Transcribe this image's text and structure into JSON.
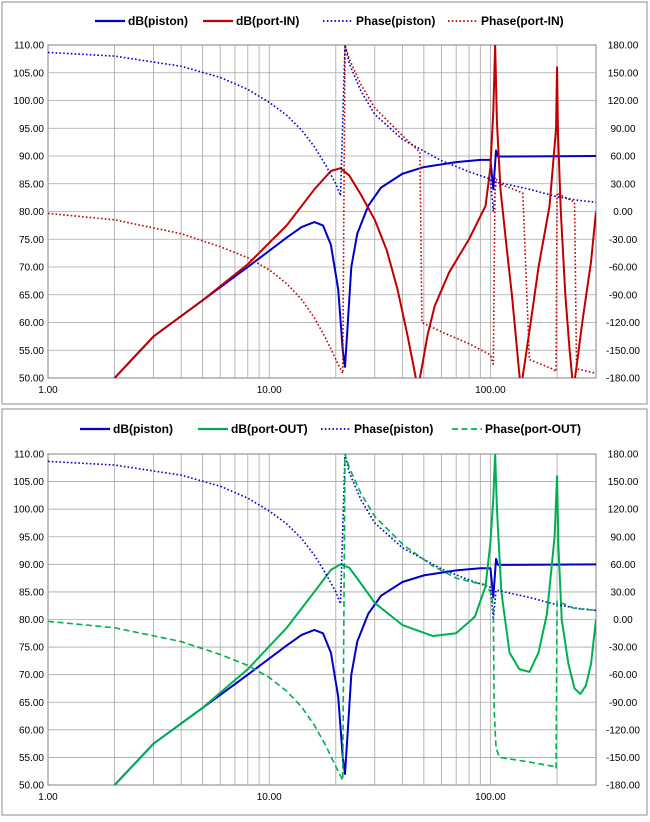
{
  "chart_data": [
    {
      "type": "line",
      "x_scale": "log",
      "xlim": [
        1,
        300
      ],
      "ylim": [
        50,
        110
      ],
      "y2lim": [
        -180,
        180
      ],
      "grid": true,
      "legend_position": "top",
      "x_tick_labels": [
        "1.00",
        "10.00",
        "100.00"
      ],
      "y_tick_labels": [
        "50.00",
        "55.00",
        "60.00",
        "65.00",
        "70.00",
        "75.00",
        "80.00",
        "85.00",
        "90.00",
        "95.00",
        "100.00",
        "105.00",
        "110.00"
      ],
      "y2_tick_labels": [
        "-180.00",
        "-150.00",
        "-120.00",
        "-90.00",
        "-60.00",
        "-30.00",
        "0.00",
        "30.00",
        "60.00",
        "90.00",
        "120.00",
        "150.00",
        "180.00"
      ],
      "series": [
        {
          "name": "dB(piston)",
          "axis": "left",
          "color": "#0000cc",
          "style": "solid",
          "points": [
            [
              2,
              50
            ],
            [
              3,
              57.5
            ],
            [
              5,
              64
            ],
            [
              8,
              70
            ],
            [
              12,
              75.3
            ],
            [
              14,
              77.2
            ],
            [
              16,
              78.1
            ],
            [
              17.5,
              77.5
            ],
            [
              19,
              74
            ],
            [
              20.5,
              66
            ],
            [
              21.5,
              55
            ],
            [
              22,
              52
            ],
            [
              22.5,
              58
            ],
            [
              23.5,
              70
            ],
            [
              25,
              76
            ],
            [
              28,
              81
            ],
            [
              32,
              84.3
            ],
            [
              40,
              86.8
            ],
            [
              50,
              88
            ],
            [
              70,
              88.9
            ],
            [
              90,
              89.3
            ],
            [
              100,
              89.3
            ],
            [
              103,
              84
            ],
            [
              106,
              91
            ],
            [
              108,
              89.9
            ],
            [
              300,
              90
            ]
          ]
        },
        {
          "name": "dB(port-IN)",
          "axis": "left",
          "color": "#c00000",
          "style": "solid",
          "points": [
            [
              2,
              50
            ],
            [
              3,
              57.5
            ],
            [
              5,
              64
            ],
            [
              8,
              70.5
            ],
            [
              12,
              77.5
            ],
            [
              16,
              84
            ],
            [
              19,
              87.3
            ],
            [
              21,
              87.8
            ],
            [
              23,
              86.5
            ],
            [
              26,
              83
            ],
            [
              30,
              78.5
            ],
            [
              34,
              73
            ],
            [
              38,
              66
            ],
            [
              42,
              58
            ],
            [
              45,
              52
            ],
            [
              47,
              48
            ],
            [
              49,
              52
            ],
            [
              52,
              57.8
            ],
            [
              56,
              63
            ],
            [
              65,
              69
            ],
            [
              80,
              75
            ],
            [
              95,
              81
            ],
            [
              100,
              88
            ],
            [
              103,
              98
            ],
            [
              105,
              110
            ],
            [
              107,
              96
            ],
            [
              111,
              84
            ],
            [
              118,
              74
            ],
            [
              125,
              65
            ],
            [
              132,
              55
            ],
            [
              137,
              48
            ],
            [
              142,
              52
            ],
            [
              152,
              60
            ],
            [
              165,
              70
            ],
            [
              185,
              81
            ],
            [
              198,
              95
            ],
            [
              200,
              106
            ],
            [
              202,
              94
            ],
            [
              208,
              80
            ],
            [
              218,
              65
            ],
            [
              228,
              55
            ],
            [
              237,
              48
            ],
            [
              245,
              52
            ],
            [
              260,
              60
            ],
            [
              285,
              71
            ],
            [
              300,
              80
            ]
          ]
        },
        {
          "name": "Phase(piston)",
          "axis": "right",
          "color": "#0000cc",
          "style": "dotted",
          "points": [
            [
              1,
              172
            ],
            [
              2,
              168
            ],
            [
              4,
              157
            ],
            [
              6,
              145
            ],
            [
              8,
              132
            ],
            [
              10,
              118
            ],
            [
              12,
              104
            ],
            [
              14,
              88
            ],
            [
              16,
              70
            ],
            [
              18,
              50
            ],
            [
              20,
              30
            ],
            [
              21,
              17
            ],
            [
              22,
              180
            ],
            [
              23,
              160
            ],
            [
              26,
              130
            ],
            [
              30,
              105
            ],
            [
              40,
              78
            ],
            [
              60,
              55
            ],
            [
              80,
              43
            ],
            [
              100,
              35
            ],
            [
              103,
              0
            ],
            [
              106,
              32
            ],
            [
              150,
              24
            ],
            [
              200,
              16
            ],
            [
              250,
              12
            ],
            [
              300,
              10
            ]
          ]
        },
        {
          "name": "Phase(port-IN)",
          "axis": "right",
          "color": "#c00000",
          "style": "dotted",
          "points": [
            [
              1,
              -2
            ],
            [
              2,
              -9
            ],
            [
              4,
              -24
            ],
            [
              6,
              -38
            ],
            [
              8,
              -50
            ],
            [
              10,
              -63
            ],
            [
              12,
              -78
            ],
            [
              14,
              -95
            ],
            [
              16,
              -115
            ],
            [
              18,
              -137
            ],
            [
              20,
              -160
            ],
            [
              21.5,
              -175
            ],
            [
              22,
              180
            ],
            [
              23,
              165
            ],
            [
              26,
              137
            ],
            [
              30,
              112
            ],
            [
              40,
              82
            ],
            [
              48,
              64
            ],
            [
              49,
              -120
            ],
            [
              60,
              -130
            ],
            [
              80,
              -143
            ],
            [
              100,
              -155
            ],
            [
              103,
              -165
            ],
            [
              105,
              37
            ],
            [
              110,
              30
            ],
            [
              140,
              20
            ],
            [
              150,
              -160
            ],
            [
              190,
              -170
            ],
            [
              198,
              -173
            ],
            [
              200,
              20
            ],
            [
              240,
              10
            ],
            [
              245,
              -170
            ],
            [
              300,
              -175
            ]
          ]
        }
      ]
    },
    {
      "type": "line",
      "x_scale": "log",
      "xlim": [
        1,
        300
      ],
      "ylim": [
        50,
        110
      ],
      "y2lim": [
        -180,
        180
      ],
      "grid": true,
      "legend_position": "top",
      "x_tick_labels": [
        "1.00",
        "10.00",
        "100.00"
      ],
      "y_tick_labels": [
        "50.00",
        "55.00",
        "60.00",
        "65.00",
        "70.00",
        "75.00",
        "80.00",
        "85.00",
        "90.00",
        "95.00",
        "100.00",
        "105.00",
        "110.00"
      ],
      "y2_tick_labels": [
        "-180.00",
        "-150.00",
        "-120.00",
        "-90.00",
        "-60.00",
        "-30.00",
        "0.00",
        "30.00",
        "60.00",
        "90.00",
        "120.00",
        "150.00",
        "180.00"
      ],
      "series": [
        {
          "name": "dB(piston)",
          "axis": "left",
          "color": "#0000cc",
          "style": "solid",
          "points": [
            [
              2,
              50
            ],
            [
              3,
              57.5
            ],
            [
              5,
              64
            ],
            [
              8,
              70
            ],
            [
              12,
              75.3
            ],
            [
              14,
              77.2
            ],
            [
              16,
              78.1
            ],
            [
              17.5,
              77.5
            ],
            [
              19,
              74
            ],
            [
              20.5,
              66
            ],
            [
              21.5,
              55
            ],
            [
              22,
              52
            ],
            [
              22.5,
              58
            ],
            [
              23.5,
              70
            ],
            [
              25,
              76
            ],
            [
              28,
              81
            ],
            [
              32,
              84.3
            ],
            [
              40,
              86.8
            ],
            [
              50,
              88
            ],
            [
              70,
              88.9
            ],
            [
              90,
              89.3
            ],
            [
              100,
              89.3
            ],
            [
              103,
              84
            ],
            [
              106,
              91
            ],
            [
              108,
              89.9
            ],
            [
              300,
              90
            ]
          ]
        },
        {
          "name": "dB(port-OUT)",
          "axis": "left",
          "color": "#00b050",
          "style": "solid",
          "points": [
            [
              2,
              50
            ],
            [
              3,
              57.5
            ],
            [
              5,
              64
            ],
            [
              8,
              71
            ],
            [
              12,
              78.5
            ],
            [
              16,
              85
            ],
            [
              19,
              89
            ],
            [
              21,
              90
            ],
            [
              23,
              89.4
            ],
            [
              26,
              86.5
            ],
            [
              30,
              83
            ],
            [
              40,
              79
            ],
            [
              55,
              77
            ],
            [
              70,
              77.5
            ],
            [
              85,
              80.5
            ],
            [
              95,
              86
            ],
            [
              100,
              94
            ],
            [
              103,
              102
            ],
            [
              105,
              110
            ],
            [
              107,
              100
            ],
            [
              112,
              85
            ],
            [
              122,
              74
            ],
            [
              135,
              71
            ],
            [
              150,
              70.5
            ],
            [
              165,
              74
            ],
            [
              180,
              81
            ],
            [
              195,
              95
            ],
            [
              200,
              106
            ],
            [
              203,
              93
            ],
            [
              210,
              80
            ],
            [
              225,
              72
            ],
            [
              240,
              67.5
            ],
            [
              255,
              66.5
            ],
            [
              270,
              68
            ],
            [
              285,
              72
            ],
            [
              300,
              80
            ]
          ]
        },
        {
          "name": "Phase(piston)",
          "axis": "right",
          "color": "#0000cc",
          "style": "dotted",
          "points": [
            [
              1,
              172
            ],
            [
              2,
              168
            ],
            [
              4,
              157
            ],
            [
              6,
              145
            ],
            [
              8,
              132
            ],
            [
              10,
              118
            ],
            [
              12,
              104
            ],
            [
              14,
              88
            ],
            [
              16,
              70
            ],
            [
              18,
              50
            ],
            [
              20,
              30
            ],
            [
              21,
              17
            ],
            [
              22,
              180
            ],
            [
              23,
              160
            ],
            [
              26,
              130
            ],
            [
              30,
              105
            ],
            [
              40,
              78
            ],
            [
              60,
              55
            ],
            [
              80,
              43
            ],
            [
              100,
              35
            ],
            [
              103,
              0
            ],
            [
              106,
              32
            ],
            [
              150,
              24
            ],
            [
              200,
              16
            ],
            [
              250,
              12
            ],
            [
              300,
              10
            ]
          ]
        },
        {
          "name": "Phase(port-OUT)",
          "axis": "right",
          "color": "#00b050",
          "style": "dashed",
          "points": [
            [
              1,
              -2
            ],
            [
              2,
              -9
            ],
            [
              4,
              -24
            ],
            [
              6,
              -38
            ],
            [
              8,
              -50
            ],
            [
              10,
              -63
            ],
            [
              12,
              -78
            ],
            [
              14,
              -95
            ],
            [
              16,
              -115
            ],
            [
              18,
              -137
            ],
            [
              20,
              -160
            ],
            [
              21.5,
              -175
            ],
            [
              22,
              180
            ],
            [
              23,
              165
            ],
            [
              26,
              137
            ],
            [
              30,
              112
            ],
            [
              40,
              82
            ],
            [
              55,
              58
            ],
            [
              70,
              45
            ],
            [
              85,
              40
            ],
            [
              95,
              38
            ],
            [
              100,
              30
            ],
            [
              103,
              15
            ],
            [
              104,
              -100
            ],
            [
              106,
              -140
            ],
            [
              110,
              -150
            ],
            [
              150,
              -155
            ],
            [
              195,
              -160
            ],
            [
              198,
              -162
            ],
            [
              200,
              20
            ],
            [
              240,
              12
            ],
            [
              300,
              10
            ]
          ]
        }
      ]
    }
  ]
}
